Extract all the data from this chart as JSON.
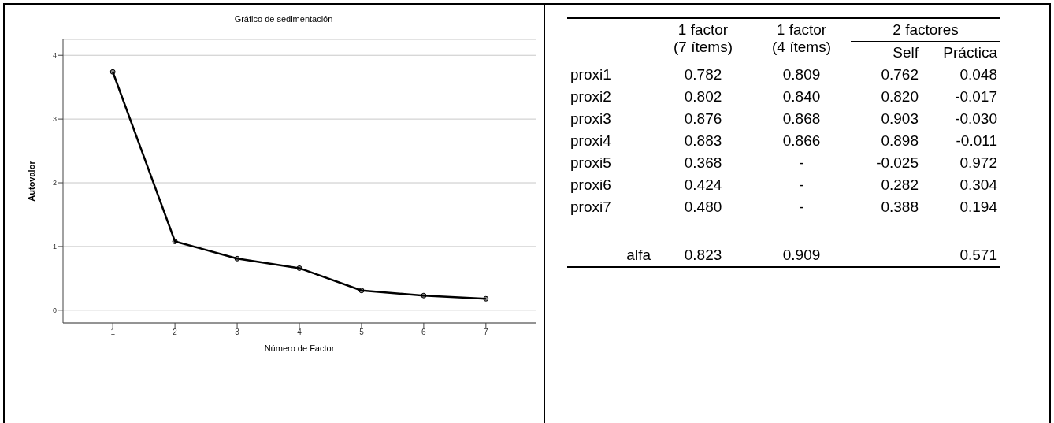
{
  "chart_data": [
    {
      "type": "line",
      "title": "Gráfico de sedimentación",
      "xlabel": "Número de Factor",
      "ylabel": "Autovalor",
      "x": [
        1,
        2,
        3,
        4,
        5,
        6,
        7
      ],
      "series": [
        {
          "color": "#000000",
          "values": [
            3.74,
            1.08,
            0.81,
            0.66,
            0.31,
            0.23,
            0.18
          ]
        }
      ],
      "xlim": [
        0.2,
        7.8
      ],
      "xticks": [
        1,
        2,
        3,
        4,
        5,
        6,
        7
      ],
      "ylim": [
        -0.2,
        4.25
      ],
      "yticks": [
        0,
        1,
        2,
        3,
        4
      ],
      "grid": "y",
      "marker": "circle",
      "line_style": "solid"
    },
    {
      "type": "other",
      "categories": [
        "proxi1",
        "proxi2",
        "proxi3",
        "proxi4",
        "proxi5",
        "proxi6",
        "proxi7",
        "alfa"
      ],
      "annotations": [
        "2 factores"
      ],
      "series": [
        {
          "name": "1 factor (7 ítems)",
          "values": [
            0.782,
            0.802,
            0.876,
            0.883,
            0.368,
            0.424,
            0.48,
            0.823
          ],
          "value_labels": [
            "0.782",
            "0.802",
            "0.876",
            "0.883",
            "0.368",
            "0.424",
            "0.480",
            "0.823"
          ]
        },
        {
          "name": "1 factor (4 ítems)",
          "values": [
            0.809,
            0.84,
            0.868,
            0.866,
            null,
            null,
            null,
            0.909
          ],
          "value_labels": [
            "0.809",
            "0.840",
            "0.868",
            "0.866",
            "-",
            "-",
            "-",
            "0.909"
          ]
        },
        {
          "name": "Self",
          "values": [
            0.762,
            0.82,
            0.903,
            0.898,
            -0.025,
            0.282,
            0.388,
            null
          ],
          "value_labels": [
            "0.762",
            "0.820",
            "0.903",
            "0.898",
            "-0.025",
            "0.282",
            "0.388",
            null
          ]
        },
        {
          "name": "Práctica",
          "values": [
            0.048,
            -0.017,
            -0.03,
            -0.011,
            0.972,
            0.304,
            0.194,
            0.571
          ],
          "value_labels": [
            "0.048",
            "-0.017",
            "-0.030",
            "-0.011",
            "0.972",
            "0.304",
            "0.194",
            "0.571"
          ]
        }
      ]
    }
  ]
}
